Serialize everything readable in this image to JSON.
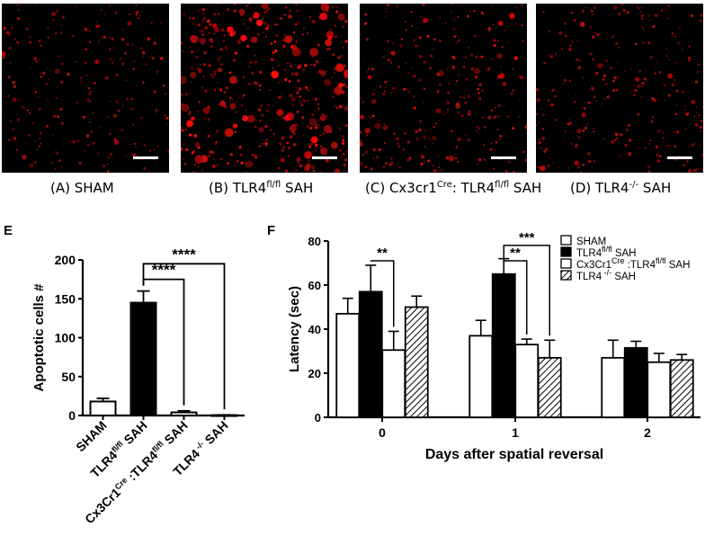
{
  "micrographs": [
    {
      "id": "A",
      "caption_pre": "(A) SHAM",
      "caption_sup": "",
      "caption_post": "",
      "intensity": 0.35,
      "density": 260
    },
    {
      "id": "B",
      "caption_pre": "(B) TLR4",
      "caption_sup": "fl/fl",
      "caption_post": " SAH",
      "intensity": 1.0,
      "density": 520
    },
    {
      "id": "C",
      "caption_pre": "(C) Cx3cr1",
      "caption_sup": "Cre",
      "caption_post": ": TLR4",
      "caption_sup2": "fl/fl",
      "caption_post2": " SAH",
      "intensity": 0.55,
      "density": 330
    },
    {
      "id": "D",
      "caption_pre": "(D) TLR4",
      "caption_sup": "-/-",
      "caption_post": " SAH",
      "intensity": 0.4,
      "density": 300
    }
  ],
  "panel_letters": {
    "e": "E",
    "f": "F"
  },
  "chart_data": [
    {
      "id": "E",
      "type": "bar",
      "ylabel": "Apoptotic cells #",
      "ylim": [
        0,
        200
      ],
      "yticks": [
        0,
        50,
        100,
        150,
        200
      ],
      "categories": [
        "SHAM",
        "TLR4fl/fl SAH",
        "Cx3Cr1Cre :TLR4fl/fl SAH",
        "TLR4-/- SAH"
      ],
      "category_labels": [
        {
          "pre": "SHAM",
          "sup": "",
          "post": "",
          "sup2": "",
          "post2": ""
        },
        {
          "pre": "TLR4",
          "sup": "fl/fl",
          "post": " SAH",
          "sup2": "",
          "post2": ""
        },
        {
          "pre": "Cx3Cr1",
          "sup": "Cre",
          "post": " :TLR4",
          "sup2": "fl/fl",
          "post2": " SAH"
        },
        {
          "pre": "TLR4",
          "sup": " -/-",
          "post": " SAH",
          "sup2": "",
          "post2": ""
        }
      ],
      "values": [
        18,
        145,
        4,
        0.5
      ],
      "errors": [
        4,
        15,
        2,
        0.3
      ],
      "fills": [
        "#ffffff",
        "#000000",
        "#ffffff",
        "#ffffff"
      ],
      "significance": [
        {
          "from": 1,
          "to": 2,
          "label": "****",
          "y": 175
        },
        {
          "from": 1,
          "to": 3,
          "label": "****",
          "y": 195
        }
      ]
    },
    {
      "id": "F",
      "type": "bar",
      "xlabel": "Days after spatial reversal",
      "ylabel": "Latency (sec)",
      "ylim": [
        0,
        80
      ],
      "yticks": [
        0,
        20,
        40,
        60,
        80
      ],
      "categories": [
        "0",
        "1",
        "2"
      ],
      "series": [
        {
          "name": "SHAM",
          "pattern": "white",
          "values": [
            47,
            37,
            27
          ],
          "errors": [
            7,
            7,
            8
          ]
        },
        {
          "name": "TLR4fl/fl SAH",
          "label_pre": "TLR4",
          "label_sup": "fl/fl",
          "label_post": " SAH",
          "pattern": "black",
          "values": [
            57,
            65,
            31.5
          ],
          "errors": [
            12,
            7,
            3
          ]
        },
        {
          "name": "Cx3Cr1Cre :TLR4fl/fl SAH",
          "label_pre": "Cx3Cr1",
          "label_sup": "Cre",
          "label_post": " :TLR4",
          "label_sup2": "fl/fl",
          "label_post2": " SAH",
          "pattern": "white",
          "values": [
            30.5,
            33,
            25
          ],
          "errors": [
            8.5,
            2.5,
            4
          ]
        },
        {
          "name": "TLR4-/- SAH",
          "label_pre": "TLR4",
          "label_sup": " -/-",
          "label_post": " SAH",
          "pattern": "hatch",
          "values": [
            50,
            27,
            26
          ],
          "errors": [
            5,
            8,
            2.5
          ]
        }
      ],
      "legend_position": "top-right",
      "significance": [
        {
          "group": 0,
          "from": 1,
          "to": 2,
          "label": "**",
          "y": 71
        },
        {
          "group": 1,
          "from": 1,
          "to": 2,
          "label": "**",
          "y": 71
        },
        {
          "group": 1,
          "from": 1,
          "to": 3,
          "label": "***",
          "y": 78
        }
      ]
    }
  ]
}
